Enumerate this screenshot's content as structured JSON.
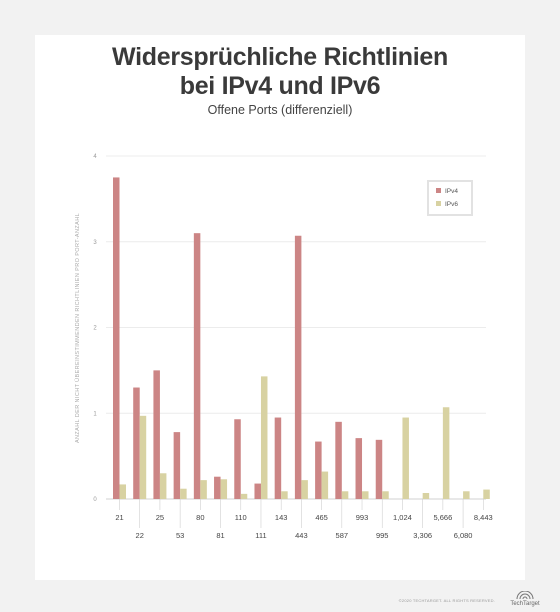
{
  "title_line1": "Widersprüchliche Richtlinien",
  "title_line2": "bei IPv4 und IPv6",
  "footer": {
    "rights": "©2020 TECHTARGET. ALL RIGHTS RESERVED.",
    "brand": "TechTarget"
  },
  "colors": {
    "ipv4": "#cc8585",
    "ipv6": "#d8d2a2"
  },
  "chart_data": {
    "type": "bar",
    "title": "Widersprüchliche Richtlinien bei IPv4 und IPv6",
    "subtitle": "Offene Ports (differenziell)",
    "ylabel": "ANZAHL DER NICHT ÜBEREINSTIMMENDEN RICHTLINIEN PRO PORT-ANZAHL",
    "xlabel": "",
    "ylim": [
      0,
      4
    ],
    "yticks": [
      "0",
      "1",
      "2",
      "3",
      "4"
    ],
    "grid": true,
    "legend_position": "top-right",
    "categories": [
      "21",
      "22",
      "25",
      "53",
      "80",
      "81",
      "110",
      "111",
      "143",
      "443",
      "465",
      "587",
      "993",
      "995",
      "1,024",
      "3,306",
      "5,666",
      "6,080",
      "8,443"
    ],
    "series": [
      {
        "name": "IPv4",
        "values": [
          3.75,
          1.3,
          1.5,
          0.78,
          3.1,
          0.26,
          0.93,
          0.18,
          0.95,
          3.07,
          0.67,
          0.9,
          0.71,
          0.69,
          0,
          0,
          0,
          0,
          0
        ]
      },
      {
        "name": "IPv6",
        "values": [
          0.17,
          0.97,
          0.3,
          0.12,
          0.22,
          0.23,
          0.06,
          1.43,
          0.09,
          0.22,
          0.32,
          0.09,
          0.09,
          0.09,
          0.95,
          0.07,
          1.07,
          0.09,
          0.11
        ]
      }
    ]
  }
}
